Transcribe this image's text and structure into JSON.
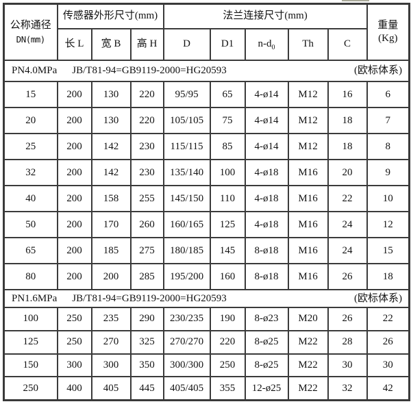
{
  "table": {
    "header": {
      "dn": {
        "line1": "公称通径",
        "line2": "DN(mm)"
      },
      "sensor_group": "传感器外形尺寸(mm)",
      "sensor_cols": [
        "长 L",
        "宽 B",
        "高 H"
      ],
      "flange_group": "法兰连接尺寸(mm)",
      "flange_cols": [
        "D",
        "D1",
        "n-d",
        "Th",
        "C"
      ],
      "nd_sub": "0",
      "weight": {
        "line1": "重量",
        "line2": "(Kg)"
      }
    },
    "sections": [
      {
        "pressure": "PN4.0MPa",
        "standard": "JB/T81-94=GB9119-2000=HG20593",
        "note": "(欧标体系)",
        "rows": [
          [
            "15",
            "200",
            "130",
            "220",
            "95/95",
            "65",
            "4-ø14",
            "M12",
            "16",
            "6"
          ],
          [
            "20",
            "200",
            "130",
            "220",
            "105/105",
            "75",
            "4-ø14",
            "M12",
            "18",
            "7"
          ],
          [
            "25",
            "200",
            "142",
            "230",
            "115/115",
            "85",
            "4-ø14",
            "M12",
            "18",
            "8"
          ],
          [
            "32",
            "200",
            "142",
            "230",
            "135/140",
            "100",
            "4-ø18",
            "M16",
            "20",
            "9"
          ],
          [
            "40",
            "200",
            "158",
            "255",
            "145/150",
            "110",
            "4-ø18",
            "M16",
            "22",
            "10"
          ],
          [
            "50",
            "200",
            "170",
            "260",
            "160/165",
            "125",
            "4-ø18",
            "M16",
            "24",
            "12"
          ],
          [
            "65",
            "200",
            "185",
            "275",
            "180/185",
            "145",
            "8-ø18",
            "M16",
            "24",
            "15"
          ],
          [
            "80",
            "200",
            "200",
            "285",
            "195/200",
            "160",
            "8-ø18",
            "M16",
            "26",
            "18"
          ]
        ]
      },
      {
        "pressure": "PN1.6MPa",
        "standard": "JB/T81-94=GB9119-2000=HG20593",
        "note": "(欧标体系)",
        "rows": [
          [
            "100",
            "250",
            "235",
            "290",
            "230/235",
            "190",
            "8-ø23",
            "M20",
            "26",
            "22"
          ],
          [
            "125",
            "250",
            "270",
            "325",
            "270/270",
            "220",
            "8-ø25",
            "M22",
            "28",
            "26"
          ],
          [
            "150",
            "300",
            "300",
            "350",
            "300/300",
            "250",
            "8-ø25",
            "M22",
            "30",
            "30"
          ],
          [
            "250",
            "400",
            "405",
            "445",
            "405/405",
            "355",
            "12-ø25",
            "M22",
            "32",
            "42"
          ]
        ]
      }
    ]
  }
}
